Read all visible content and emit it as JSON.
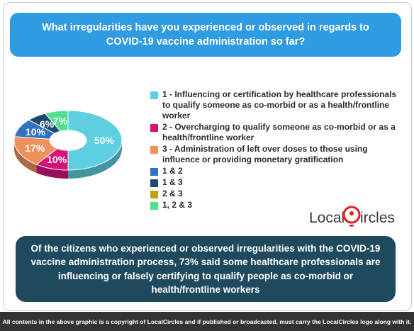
{
  "question": "What irregularities have you experienced or observed in regards to COVID-19 vaccine administration so far?",
  "chart_data": {
    "type": "pie",
    "style": "3d-donut",
    "categories": [
      "1 - Influencing or certification by healthcare professionals to qualify someone as co-morbid or as a health/frontline worker",
      "2 - Overcharging to qualify someone as co-morbid or as a health/frontline worker",
      "3 - Administration of left over doses to those using influence or providing monetary gratification",
      "1 & 2",
      "1 & 3",
      "2 & 3",
      "1, 2 & 3"
    ],
    "values": [
      50,
      10,
      17,
      10,
      6,
      0,
      7
    ],
    "data_labels": [
      "50%",
      "10%",
      "17%",
      "10%",
      "6%",
      "",
      "7%"
    ],
    "colors": [
      "#5ecfe0",
      "#d6127a",
      "#f0905e",
      "#2f73c0",
      "#1c4a6e",
      "#b9a800",
      "#4fe08e"
    ],
    "legend_position": "right"
  },
  "logo": {
    "text_left": "Local",
    "text_right": "ircles",
    "accent": "#e02020"
  },
  "finding": "Of the citizens who experienced or observed irregularities with the COVID-19 vaccine administration process, 73% said some healthcare professionals are influencing or falsely certifying to qualify people as co-morbid or health/frontline workers",
  "footer": "All contents in the above graphic is a copyright of LocalCircles and if published or broadcasted, must carry the LocalCircles logo along with it."
}
